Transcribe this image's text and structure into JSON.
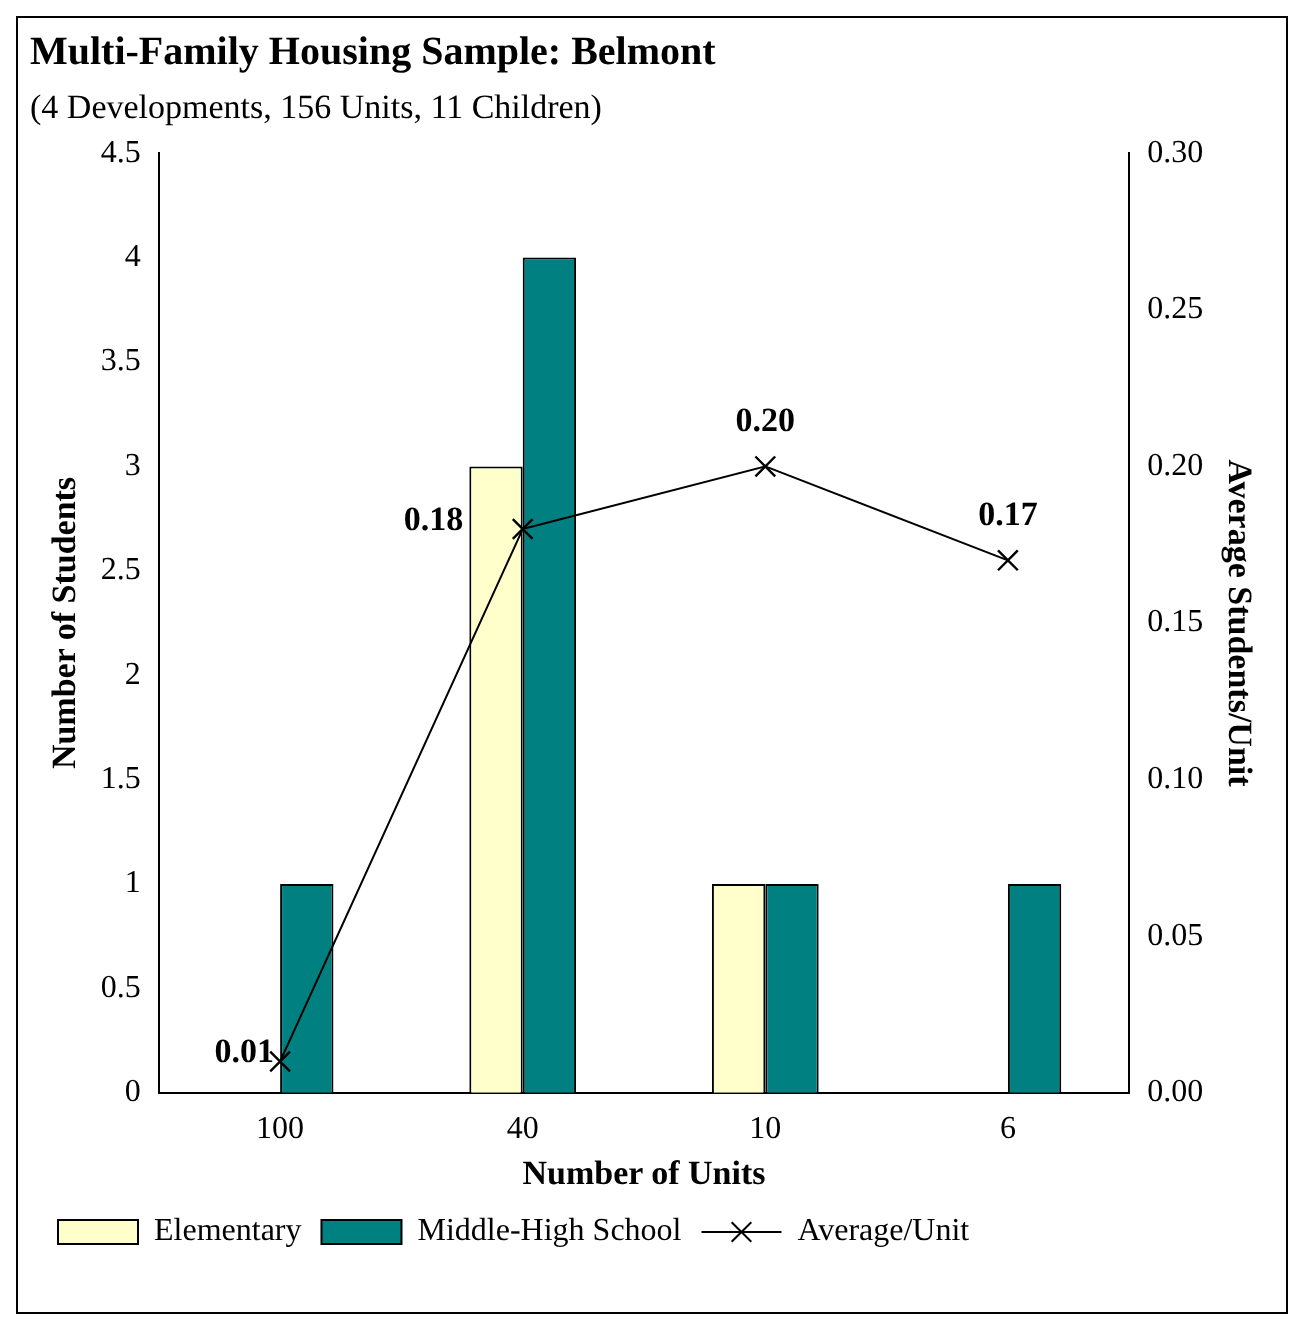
{
  "chart_data": {
    "type": "bar",
    "title": "Multi-Family Housing Sample: Belmont",
    "subtitle": "(4 Developments, 156 Units, 11 Children)",
    "xlabel": "Number of Units",
    "ylabel": "Number of Students",
    "y2label": "Average Students/Unit",
    "categories": [
      "100",
      "40",
      "10",
      "6"
    ],
    "series": [
      {
        "name": "Elementary",
        "color": "#ffffcc",
        "values": [
          0,
          3,
          1,
          0
        ]
      },
      {
        "name": "Middle-High School",
        "color": "#008080",
        "values": [
          1,
          4,
          1,
          1
        ]
      },
      {
        "name": "Average/Unit",
        "type": "line",
        "axis": "y2",
        "color": "#000000",
        "marker": "cross",
        "values": [
          0.01,
          0.18,
          0.2,
          0.17
        ],
        "value_labels": [
          "0.01",
          "0.18",
          "0.20",
          "0.17"
        ]
      }
    ],
    "ylim": [
      0,
      4.5
    ],
    "yticks": [
      0,
      0.5,
      1,
      1.5,
      2,
      2.5,
      3,
      3.5,
      4,
      4.5
    ],
    "y2lim": [
      0,
      0.3
    ],
    "y2ticks": [
      {
        "value": 0,
        "label": "0.00"
      },
      {
        "value": 0.05,
        "label": "0.05"
      },
      {
        "value": 0.1,
        "label": "0.10"
      },
      {
        "value": 0.15,
        "label": "0.15"
      },
      {
        "value": 0.2,
        "label": "0.20"
      },
      {
        "value": 0.25,
        "label": "0.25"
      },
      {
        "value": 0.3,
        "label": "0.30"
      }
    ],
    "grid": false,
    "legend": "bottom"
  }
}
